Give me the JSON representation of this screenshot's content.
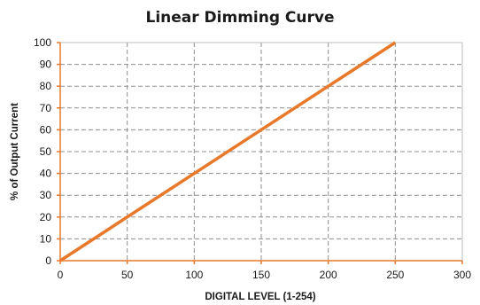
{
  "chart_data": {
    "type": "line",
    "title": "Linear Dimming Curve",
    "xlabel": "DIGITAL LEVEL (1-254)",
    "ylabel": "% of Output Current",
    "xlim": [
      0,
      300
    ],
    "ylim": [
      0,
      100
    ],
    "x_ticks": [
      0,
      50,
      100,
      150,
      200,
      250,
      300
    ],
    "y_ticks": [
      0,
      10,
      20,
      30,
      40,
      50,
      60,
      70,
      80,
      90,
      100
    ],
    "x_tick_labels": [
      "0",
      "50",
      "100",
      "150",
      "200",
      "250",
      "300"
    ],
    "y_tick_labels": [
      "0",
      "10",
      "20",
      "30",
      "40",
      "50",
      "60",
      "70",
      "80",
      "90",
      "100"
    ],
    "grid": true,
    "grid_style": "dashed",
    "legend": "none",
    "series": [
      {
        "x": [
          0,
          250
        ],
        "y": [
          0,
          100
        ],
        "color": "#e8782a"
      }
    ],
    "axis_color": "#e8782a",
    "grid_color": "#8f8f8f"
  }
}
